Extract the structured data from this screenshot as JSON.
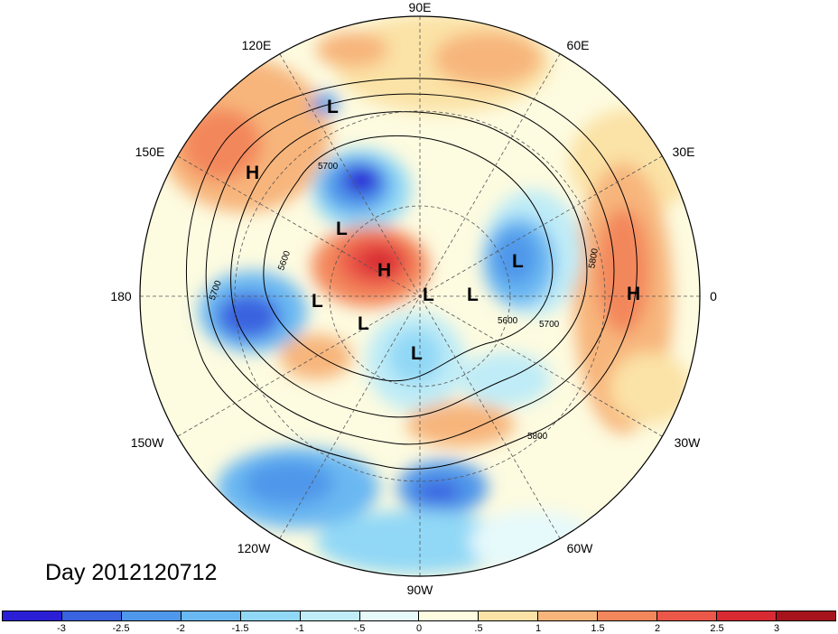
{
  "title": "Day 2012120712",
  "lon_labels": {
    "n90e": "90E",
    "n60e": "60E",
    "n120e": "120E",
    "n150e": "150E",
    "n30e": "30E",
    "n180": "180",
    "n0": "0",
    "n150w": "150W",
    "n30w": "30W",
    "n120w": "120W",
    "n60w": "60W",
    "n90w": "90W"
  },
  "colorbar": {
    "colors": [
      "#2b1fd6",
      "#3a63e0",
      "#4f97ea",
      "#6ab8f2",
      "#91d8f6",
      "#bfecf7",
      "#e6f9fb",
      "#fdfbe0",
      "#fbe2a6",
      "#f7b57c",
      "#f3875c",
      "#eb5748",
      "#d82a32",
      "#a6131c"
    ],
    "ticks": [
      "-3",
      "-2.5",
      "-2",
      "-1.5",
      "-1",
      "-.5",
      "0",
      ".5",
      "1",
      "1.5",
      "2",
      "2.5",
      "3"
    ]
  },
  "pressure_centers": [
    "L",
    "H",
    "L",
    "L",
    "H",
    "L",
    "L",
    "L",
    "L",
    "L",
    "H"
  ],
  "contour_labels": [
    "5700",
    "5600",
    "5700",
    "5800",
    "5600",
    "5700",
    "5800"
  ]
}
